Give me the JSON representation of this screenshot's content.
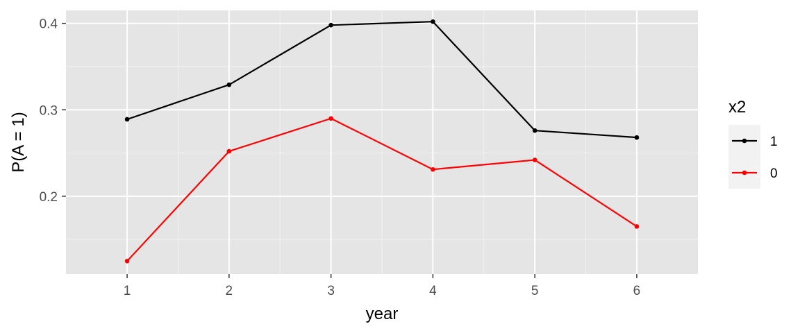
{
  "chart_data": {
    "type": "line",
    "x": [
      1,
      2,
      3,
      4,
      5,
      6
    ],
    "xlabel": "year",
    "ylabel": "P(A = 1)",
    "xticks": [
      "1",
      "2",
      "3",
      "4",
      "5",
      "6"
    ],
    "yticks": [
      "0.2",
      "0.3",
      "0.4"
    ],
    "xlim": [
      0.4,
      6.6
    ],
    "ylim": [
      0.11,
      0.415
    ],
    "grid": true,
    "background": "#e5e5e5",
    "legend": {
      "title": "x2",
      "placement": "right"
    },
    "series": [
      {
        "name": "1",
        "color": "#000000",
        "values": [
          0.289,
          0.329,
          0.398,
          0.402,
          0.276,
          0.268
        ]
      },
      {
        "name": "0",
        "color": "#ff0000",
        "values": [
          0.125,
          0.252,
          0.29,
          0.231,
          0.242,
          0.165
        ]
      }
    ]
  }
}
